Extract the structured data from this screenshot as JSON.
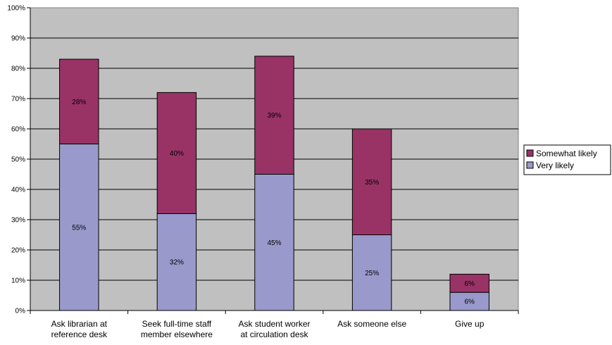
{
  "chart_data": {
    "type": "bar",
    "stacked": true,
    "categories": [
      [
        "Ask librarian at",
        "reference desk"
      ],
      [
        "Seek full-time staff",
        "member elsewhere"
      ],
      [
        "Ask student worker",
        "at circulation desk"
      ],
      [
        "Ask someone else"
      ],
      [
        "Give up"
      ]
    ],
    "series": [
      {
        "name": "Very likely",
        "color": "#9999cc",
        "values": [
          55,
          32,
          45,
          25,
          6
        ],
        "labels": [
          "55%",
          "32%",
          "45%",
          "25%",
          "6%"
        ]
      },
      {
        "name": "Somewhat likely",
        "color": "#993366",
        "values": [
          28,
          40,
          39,
          35,
          6
        ],
        "labels": [
          "28%",
          "40%",
          "39%",
          "35%",
          "6%"
        ]
      }
    ],
    "ylim": [
      0,
      100
    ],
    "yticks": [
      "0%",
      "10%",
      "20%",
      "30%",
      "40%",
      "50%",
      "60%",
      "70%",
      "80%",
      "90%",
      "100%"
    ],
    "legend": {
      "position": "right",
      "entries": [
        "Somewhat likely",
        "Very likely"
      ]
    },
    "grid": true,
    "plot_background": "#c0c0c0",
    "title": "",
    "xlabel": "",
    "ylabel": ""
  }
}
